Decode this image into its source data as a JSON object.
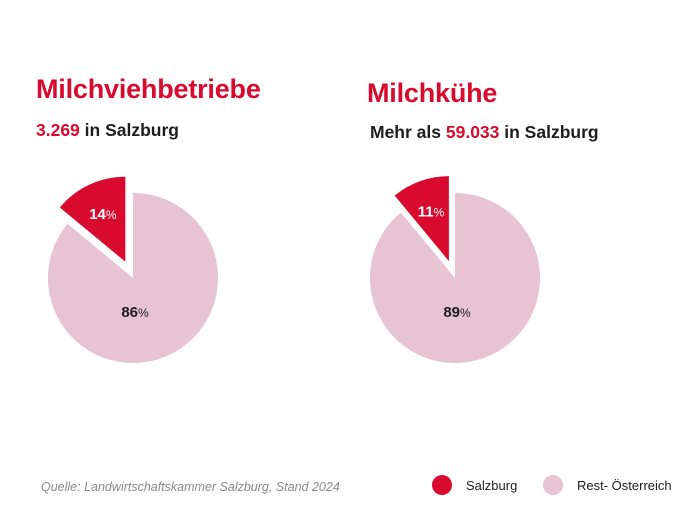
{
  "colors": {
    "salzburg": "#d80b2f",
    "rest": "#e8c3d1",
    "label_dark": "#1e1e1e",
    "label_light": "#ffffff"
  },
  "chart_data": [
    {
      "type": "pie",
      "title": "Milchviehbetriebe",
      "subtitle": {
        "value": "3.269",
        "suffix": " in Salzburg"
      },
      "slices": [
        {
          "name": "Salzburg",
          "value": 14,
          "label": "14",
          "exploded": true
        },
        {
          "name": "Rest- Österreich",
          "value": 86,
          "label": "86",
          "exploded": false
        }
      ]
    },
    {
      "type": "pie",
      "title": "Milchkühe",
      "subtitle": {
        "prefix": "Mehr als ",
        "value": "59.033",
        "suffix": " in Salzburg"
      },
      "slices": [
        {
          "name": "Salzburg",
          "value": 11,
          "label": "11",
          "exploded": true
        },
        {
          "name": "Rest- Österreich",
          "value": 89,
          "label": "89",
          "exploded": false
        }
      ]
    }
  ],
  "percent_sign": "%",
  "source": "Quelle: Landwirtschaftskammer Salzburg, Stand 2024",
  "legend": [
    {
      "label": "Salzburg"
    },
    {
      "label": "Rest- Österreich"
    }
  ]
}
